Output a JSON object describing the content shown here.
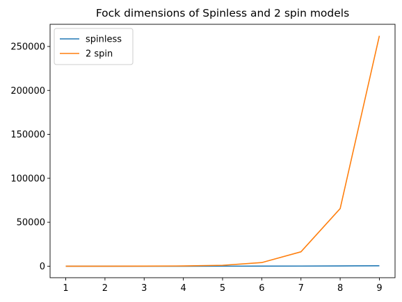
{
  "chart_data": {
    "type": "line",
    "title": "Fock dimensions of Spinless and 2 spin models",
    "xlabel": "",
    "ylabel": "",
    "x": [
      1,
      2,
      3,
      4,
      5,
      6,
      7,
      8,
      9
    ],
    "series": [
      {
        "name": "spinless",
        "color": "#1f77b4",
        "values": [
          2,
          4,
          8,
          16,
          32,
          64,
          128,
          256,
          512
        ]
      },
      {
        "name": "2 spin",
        "color": "#ff7f0e",
        "values": [
          4,
          16,
          64,
          256,
          1024,
          4096,
          16384,
          65536,
          262144
        ]
      }
    ],
    "xlim": [
      0.6,
      9.4
    ],
    "ylim": [
      -13100,
      275250
    ],
    "xticks": [
      1,
      2,
      3,
      4,
      5,
      6,
      7,
      8,
      9
    ],
    "yticks": [
      0,
      50000,
      100000,
      150000,
      200000,
      250000
    ],
    "grid": false,
    "legend_position": "upper left"
  }
}
